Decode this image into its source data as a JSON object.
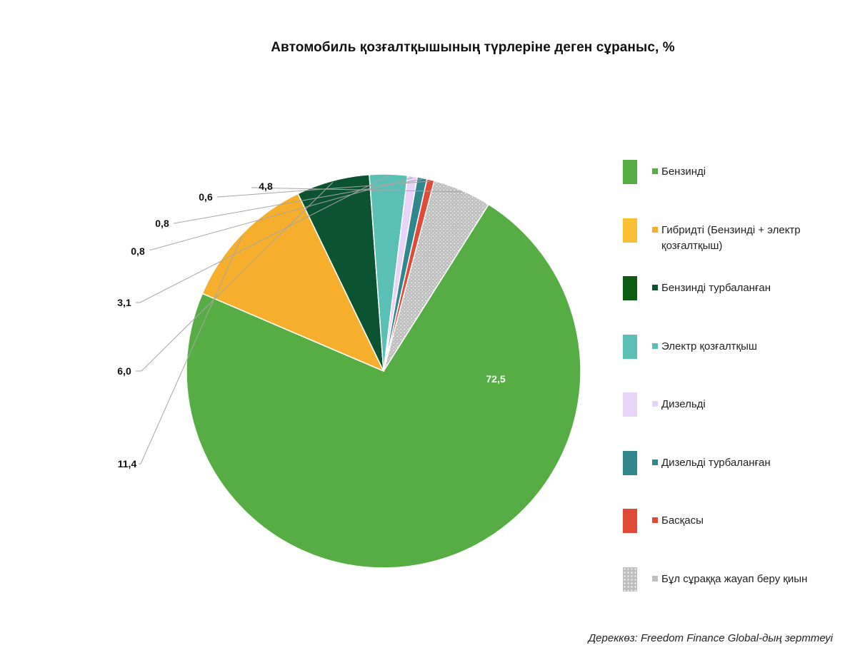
{
  "chart_data": {
    "type": "pie",
    "title": "Автомобиль қозғалтқышының түрлеріне деген сұраныс, %",
    "categories": [
      "Бензинді",
      "Гибридті (Бензинді + электр қозғалтқыш)",
      "Бензинді турбаланған",
      "Электр қозғалтқыш",
      "Дизельді",
      "Дизельді турбаланған",
      "Басқасы",
      "Бұл сұраққа жауап беру қиын"
    ],
    "values": [
      72.5,
      11.4,
      6.0,
      3.1,
      0.8,
      0.8,
      0.6,
      4.8
    ],
    "value_labels": [
      "72,5",
      "11,4",
      "6,0",
      "3,1",
      "0,8",
      "0,8",
      "0,6",
      "4,8"
    ],
    "colors": [
      "#56AD44",
      "#F5AF2C",
      "#0C5331",
      "#5ABFB5",
      "#E8D4F8",
      "#30878E",
      "#E24A38",
      "#BFBFBF"
    ],
    "legend_swatch_colors": [
      "#56AD44",
      "#FBBF33",
      "#0C5C12",
      "#5ABFB5",
      "#E8D4F8",
      "#30878E",
      "#E24A38",
      "#BFBFBF"
    ],
    "legend_position": "right",
    "dotted_pattern_category": "Бұл сұраққа жауап беру қиын"
  },
  "source": "Дереккөз: Freedom Finance Global-дың зерттеуі"
}
